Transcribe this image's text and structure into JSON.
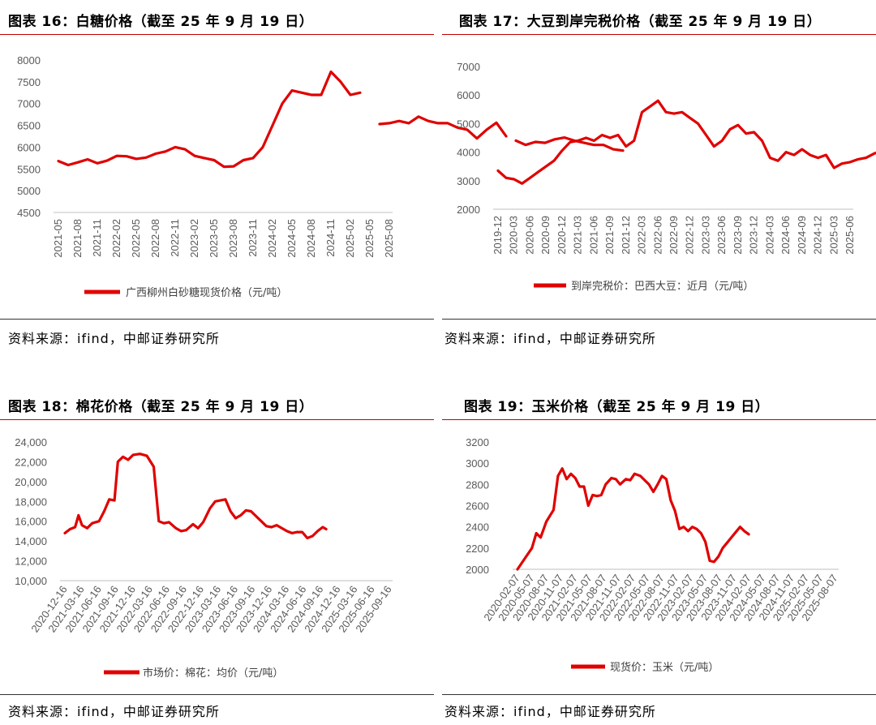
{
  "panels": [
    {
      "title": "图表 16：白糖价格（截至 25 年 9 月 19 日）",
      "source": "资料来源：ifind，中邮证券研究所"
    },
    {
      "title": "图表 17：大豆到岸完税价格（截至 25 年 9 月 19 日）",
      "source": "资料来源：ifind，中邮证券研究所"
    },
    {
      "title": "图表 18：棉花价格（截至 25 年 9 月 19 日）",
      "source": "资料来源：ifind，中邮证券研究所"
    },
    {
      "title": "图表 19：玉米价格（截至 25 年 9 月 19 日）",
      "source": "资料来源：ifind，中邮证券研究所"
    }
  ],
  "chart_data": [
    {
      "type": "line",
      "title": "图表 16：白糖价格（截至 25 年 9 月 19 日）",
      "ylim": [
        4500,
        8000
      ],
      "yticks": [
        4500,
        5000,
        5500,
        6000,
        6500,
        7000,
        7500,
        8000
      ],
      "xticks": [
        "2021-05",
        "2021-08",
        "2021-11",
        "2022-02",
        "2022-05",
        "2022-08",
        "2022-11",
        "2023-02",
        "2023-05",
        "2023-08",
        "2023-11",
        "2024-02",
        "2024-05",
        "2024-08",
        "2024-11",
        "2025-02",
        "2025-05",
        "2025-08"
      ],
      "color": "#e00000",
      "series": [
        {
          "name": "广西柳州白砂糖现货价格（元/吨）",
          "segments": [
            [
              [
                0,
                5680
              ],
              [
                0.5,
                5590
              ],
              [
                1,
                5650
              ],
              [
                1.5,
                5720
              ],
              [
                2,
                5630
              ],
              [
                2.5,
                5690
              ],
              [
                3,
                5800
              ],
              [
                3.5,
                5790
              ],
              [
                4,
                5730
              ],
              [
                4.5,
                5760
              ],
              [
                5,
                5850
              ],
              [
                5.5,
                5900
              ],
              [
                6,
                6000
              ],
              [
                6.5,
                5950
              ],
              [
                7,
                5800
              ],
              [
                7.5,
                5750
              ],
              [
                8,
                5700
              ],
              [
                8.5,
                5550
              ],
              [
                9,
                5560
              ],
              [
                9.5,
                5700
              ],
              [
                10,
                5750
              ],
              [
                10.5,
                6000
              ],
              [
                11,
                6500
              ],
              [
                11.5,
                7000
              ],
              [
                12,
                7300
              ],
              [
                12.5,
                7250
              ],
              [
                13,
                7200
              ],
              [
                13.5,
                7200
              ],
              [
                14,
                7730
              ],
              [
                14.5,
                7500
              ],
              [
                15,
                7200
              ],
              [
                15.5,
                7250
              ]
            ],
            [
              [
                16.5,
                6530
              ],
              [
                17,
                6550
              ],
              [
                17.5,
                6600
              ],
              [
                18,
                6550
              ],
              [
                18.5,
                6700
              ],
              [
                19,
                6600
              ],
              [
                19.5,
                6550
              ],
              [
                20,
                6550
              ],
              [
                20.5,
                6450
              ],
              [
                21,
                6400
              ],
              [
                21.5,
                6200
              ],
              [
                22,
                6400
              ],
              [
                22.5,
                6560
              ],
              [
                23,
                6250
              ]
            ],
            [
              [
                23.5,
                6150
              ],
              [
                24,
                6050
              ],
              [
                24.5,
                6120
              ],
              [
                25,
                6100
              ],
              [
                25.5,
                6180
              ],
              [
                26,
                6220
              ],
              [
                26.5,
                6150
              ],
              [
                27,
                6100
              ],
              [
                27.5,
                6050
              ],
              [
                28,
                6050
              ],
              [
                28.5,
                5950
              ],
              [
                29,
                5920
              ]
            ]
          ]
        }
      ]
    },
    {
      "type": "line",
      "title": "图表 17：大豆到岸完税价格（截至 25 年 9 月 19 日）",
      "ylim": [
        2000,
        7000
      ],
      "yticks": [
        2000,
        3000,
        4000,
        5000,
        6000,
        7000
      ],
      "xticks": [
        "2019-12",
        "2020-03",
        "2020-06",
        "2020-09",
        "2020-12",
        "2021-03",
        "2021-06",
        "2021-09",
        "2021-12",
        "2022-03",
        "2022-06",
        "2022-09",
        "2022-12",
        "2023-03",
        "2023-06",
        "2023-09",
        "2023-12",
        "2024-03",
        "2024-06",
        "2024-09",
        "2024-12",
        "2025-03",
        "2025-06"
      ],
      "color": "#e00000",
      "series": [
        {
          "name": "到岸完税价：巴西大豆：近月（元/吨）",
          "segments": [
            [
              [
                0,
                3350
              ],
              [
                0.5,
                3100
              ],
              [
                1,
                3050
              ],
              [
                1.5,
                2900
              ],
              [
                2,
                3100
              ],
              [
                2.5,
                3300
              ],
              [
                3,
                3500
              ],
              [
                3.5,
                3700
              ],
              [
                4,
                4050
              ],
              [
                4.5,
                4350
              ],
              [
                5,
                4400
              ],
              [
                5.5,
                4500
              ],
              [
                6,
                4400
              ],
              [
                6.5,
                4600
              ],
              [
                7,
                4500
              ],
              [
                7.5,
                4600
              ],
              [
                8,
                4200
              ],
              [
                8.5,
                4400
              ],
              [
                9,
                5400
              ],
              [
                9.5,
                5600
              ],
              [
                10,
                5800
              ],
              [
                10.5,
                5400
              ],
              [
                11,
                5350
              ],
              [
                11.5,
                5400
              ],
              [
                12,
                5200
              ],
              [
                12.5,
                5000
              ],
              [
                13,
                4600
              ],
              [
                13.5,
                4200
              ],
              [
                14,
                4400
              ],
              [
                14.5,
                4800
              ],
              [
                15,
                4950
              ],
              [
                15.5,
                4650
              ],
              [
                16,
                4700
              ],
              [
                16.5,
                4400
              ],
              [
                17,
                3800
              ],
              [
                17.5,
                3700
              ],
              [
                18,
                4000
              ],
              [
                18.5,
                3900
              ],
              [
                19,
                4100
              ],
              [
                19.5,
                3900
              ],
              [
                20,
                3800
              ],
              [
                20.5,
                3900
              ],
              [
                21,
                3450
              ],
              [
                21.5,
                3600
              ],
              [
                22,
                3650
              ],
              [
                22.5,
                3750
              ],
              [
                23,
                3800
              ],
              [
                23.5,
                3950
              ],
              [
                24,
                4050
              ]
            ]
          ]
        }
      ]
    },
    {
      "type": "line",
      "title": "图表 18：棉花价格（截至 25 年 9 月 19 日）",
      "ylim": [
        10000,
        24000
      ],
      "yticks": [
        10000,
        12000,
        14000,
        16000,
        18000,
        20000,
        22000,
        24000
      ],
      "ytick_labels": [
        "10,000",
        "12,000",
        "14,000",
        "16,000",
        "18,000",
        "20,000",
        "22,000",
        "24,000"
      ],
      "xticks": [
        "2020-12-16",
        "2021-03-16",
        "2021-06-16",
        "2021-09-16",
        "2021-12-16",
        "2022-03-16",
        "2022-06-16",
        "2022-09-16",
        "2022-12-16",
        "2023-03-16",
        "2023-06-16",
        "2023-09-16",
        "2023-12-16",
        "2024-03-16",
        "2024-06-16",
        "2024-09-16",
        "2024-12-16",
        "2025-03-16",
        "2025-06-16",
        "2025-09-16"
      ],
      "color": "#e00000",
      "series": [
        {
          "name": "市场价：棉花：均价（元/吨）",
          "segments": [
            [
              [
                0,
                14800
              ],
              [
                0.3,
                15200
              ],
              [
                0.6,
                15400
              ],
              [
                0.8,
                16600
              ],
              [
                1,
                15600
              ],
              [
                1.3,
                15300
              ],
              [
                1.6,
                15800
              ],
              [
                2,
                16000
              ],
              [
                2.3,
                17000
              ],
              [
                2.6,
                18200
              ],
              [
                2.9,
                18100
              ],
              [
                3.1,
                22000
              ],
              [
                3.4,
                22500
              ],
              [
                3.7,
                22200
              ],
              [
                4,
                22700
              ],
              [
                4.4,
                22800
              ],
              [
                4.8,
                22600
              ],
              [
                5.2,
                21500
              ],
              [
                5.5,
                16000
              ],
              [
                5.8,
                15800
              ],
              [
                6.1,
                15900
              ],
              [
                6.5,
                15300
              ],
              [
                6.8,
                15000
              ],
              [
                7.1,
                15100
              ],
              [
                7.5,
                15700
              ],
              [
                7.8,
                15300
              ],
              [
                8.1,
                15900
              ],
              [
                8.5,
                17300
              ],
              [
                8.8,
                18000
              ],
              [
                9.1,
                18100
              ],
              [
                9.4,
                18200
              ],
              [
                9.7,
                17000
              ],
              [
                10,
                16300
              ],
              [
                10.3,
                16600
              ],
              [
                10.6,
                17100
              ],
              [
                10.9,
                17000
              ],
              [
                11.2,
                16500
              ],
              [
                11.5,
                16000
              ],
              [
                11.8,
                15500
              ],
              [
                12.1,
                15400
              ],
              [
                12.4,
                15600
              ],
              [
                12.7,
                15300
              ],
              [
                13,
                15000
              ],
              [
                13.3,
                14800
              ],
              [
                13.6,
                14900
              ],
              [
                13.9,
                14900
              ],
              [
                14.2,
                14300
              ],
              [
                14.5,
                14500
              ],
              [
                14.8,
                15000
              ],
              [
                15.1,
                15400
              ],
              [
                15.3,
                15200
              ]
            ]
          ]
        }
      ]
    },
    {
      "type": "line",
      "title": "图表 19：玉米价格（截至 25 年 9 月 19 日）",
      "ylim": [
        2000,
        3200
      ],
      "yticks": [
        2000,
        2200,
        2400,
        2600,
        2800,
        3000,
        3200
      ],
      "xticks": [
        "2020-02-07",
        "2020-05-07",
        "2020-08-07",
        "2020-11-07",
        "2021-02-07",
        "2021-05-07",
        "2021-08-07",
        "2021-11-07",
        "2022-02-07",
        "2022-05-07",
        "2022-08-07",
        "2022-11-07",
        "2023-02-07",
        "2023-05-07",
        "2023-08-07",
        "2023-11-07",
        "2024-02-07",
        "2024-05-07",
        "2024-08-07",
        "2024-11-07",
        "2025-02-07",
        "2025-05-07",
        "2025-08-07"
      ],
      "color": "#e00000",
      "series": [
        {
          "name": "现货价：玉米（元/吨）",
          "segments": [
            [
              [
                0,
                2000
              ],
              [
                0.5,
                2100
              ],
              [
                1,
                2200
              ],
              [
                1.3,
                2340
              ],
              [
                1.6,
                2300
              ],
              [
                2,
                2450
              ],
              [
                2.5,
                2560
              ],
              [
                2.8,
                2880
              ],
              [
                3.1,
                2950
              ],
              [
                3.4,
                2850
              ],
              [
                3.7,
                2900
              ],
              [
                4,
                2860
              ],
              [
                4.3,
                2780
              ],
              [
                4.6,
                2780
              ],
              [
                4.9,
                2600
              ],
              [
                5.2,
                2700
              ],
              [
                5.5,
                2690
              ],
              [
                5.8,
                2700
              ],
              [
                6.1,
                2800
              ],
              [
                6.5,
                2860
              ],
              [
                6.8,
                2850
              ],
              [
                7.1,
                2800
              ],
              [
                7.5,
                2850
              ],
              [
                7.8,
                2840
              ],
              [
                8.1,
                2900
              ],
              [
                8.5,
                2880
              ],
              [
                8.8,
                2840
              ],
              [
                9.1,
                2800
              ],
              [
                9.4,
                2730
              ],
              [
                9.7,
                2800
              ],
              [
                10,
                2880
              ],
              [
                10.3,
                2850
              ],
              [
                10.6,
                2650
              ],
              [
                10.9,
                2550
              ],
              [
                11.2,
                2380
              ],
              [
                11.5,
                2400
              ],
              [
                11.8,
                2360
              ],
              [
                12.1,
                2400
              ],
              [
                12.4,
                2380
              ],
              [
                12.7,
                2340
              ],
              [
                13,
                2260
              ],
              [
                13.3,
                2080
              ],
              [
                13.6,
                2070
              ],
              [
                13.9,
                2120
              ],
              [
                14.2,
                2200
              ],
              [
                14.5,
                2250
              ],
              [
                14.8,
                2300
              ],
              [
                15.1,
                2350
              ],
              [
                15.4,
                2400
              ],
              [
                15.7,
                2360
              ],
              [
                16,
                2330
              ]
            ]
          ]
        }
      ]
    }
  ]
}
